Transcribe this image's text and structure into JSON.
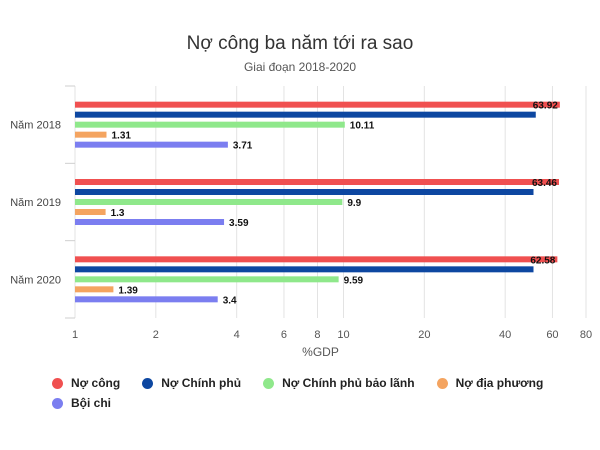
{
  "chart_data": {
    "type": "bar",
    "orientation": "horizontal",
    "title": "Nợ công ba năm tới ra sao",
    "subtitle": "Giai đoạn 2018-2020",
    "xlabel": "%GDP",
    "ylabel": "",
    "xscale": "log",
    "xlim": [
      1,
      80
    ],
    "xticks": [
      1,
      2,
      4,
      6,
      8,
      10,
      20,
      40,
      60,
      80
    ],
    "categories": [
      "Năm 2018",
      "Năm 2019",
      "Năm 2020"
    ],
    "grid": true,
    "legend_position": "bottom",
    "series": [
      {
        "name": "Nợ công",
        "color": "#f05050",
        "values": [
          63.92,
          63.46,
          62.58
        ]
      },
      {
        "name": "Nợ Chính phủ",
        "color": "#0d47a1",
        "values": [
          52,
          51,
          51
        ]
      },
      {
        "name": "Nợ Chính phủ bảo lãnh",
        "color": "#8fe88b",
        "values": [
          10.11,
          9.9,
          9.59
        ]
      },
      {
        "name": "Nợ địa phương",
        "color": "#f4a460",
        "values": [
          1.31,
          1.3,
          1.39
        ]
      },
      {
        "name": "Bội chi",
        "color": "#7b7ef0",
        "values": [
          3.71,
          3.59,
          3.4
        ]
      }
    ],
    "data_labels": [
      [
        "63.92",
        "",
        "10.11",
        "1.31",
        "3.71"
      ],
      [
        "63.46",
        "",
        "9.9",
        "1.3",
        "3.59"
      ],
      [
        "62.58",
        "",
        "9.59",
        "1.39",
        "3.4"
      ]
    ]
  }
}
